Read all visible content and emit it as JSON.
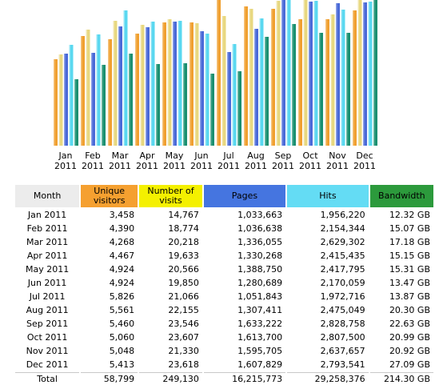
{
  "chart_data": {
    "type": "bar",
    "categories": [
      "Jan 2011",
      "Feb 2011",
      "Mar 2011",
      "Apr 2011",
      "May 2011",
      "Jun 2011",
      "Jul 2011",
      "Aug 2011",
      "Sep 2011",
      "Oct 2011",
      "Nov 2011",
      "Dec 2011"
    ],
    "series": [
      {
        "name": "Unique visitors",
        "color": "#f0a030",
        "values": [
          3458,
          4390,
          4268,
          4467,
          4924,
          4924,
          5826,
          5561,
          5460,
          5060,
          5048,
          5413
        ]
      },
      {
        "name": "Number of visits",
        "color": "#e8d880",
        "values": [
          14767,
          18774,
          20218,
          19633,
          20566,
          19850,
          21066,
          22155,
          23546,
          23607,
          21330,
          23618
        ]
      },
      {
        "name": "Pages",
        "color": "#4a6ad8",
        "values": [
          1033663,
          1036638,
          1336055,
          1330268,
          1388750,
          1280689,
          1051843,
          1307411,
          1633222,
          1613700,
          1595705,
          1607829
        ]
      },
      {
        "name": "Hits",
        "color": "#5ad8f0",
        "values": [
          1956220,
          2154344,
          2629302,
          2415435,
          2417795,
          2170059,
          1972716,
          2475049,
          2828758,
          2807500,
          2637657,
          2793541
        ]
      },
      {
        "name": "Bandwidth",
        "color": "#1a9070",
        "values": [
          12.32,
          15.07,
          17.18,
          15.15,
          15.31,
          13.47,
          13.87,
          20.3,
          22.63,
          20.99,
          20.92,
          27.09
        ]
      }
    ]
  },
  "table": {
    "headers": {
      "month": "Month",
      "unique_visitors": "Unique visitors",
      "visits": "Number of visits",
      "pages": "Pages",
      "hits": "Hits",
      "bandwidth": "Bandwidth"
    },
    "rows": [
      {
        "month": "Jan 2011",
        "unique_visitors": "3,458",
        "visits": "14,767",
        "pages": "1,033,663",
        "hits": "1,956,220",
        "bandwidth": "12.32 GB"
      },
      {
        "month": "Feb 2011",
        "unique_visitors": "4,390",
        "visits": "18,774",
        "pages": "1,036,638",
        "hits": "2,154,344",
        "bandwidth": "15.07 GB"
      },
      {
        "month": "Mar 2011",
        "unique_visitors": "4,268",
        "visits": "20,218",
        "pages": "1,336,055",
        "hits": "2,629,302",
        "bandwidth": "17.18 GB"
      },
      {
        "month": "Apr 2011",
        "unique_visitors": "4,467",
        "visits": "19,633",
        "pages": "1,330,268",
        "hits": "2,415,435",
        "bandwidth": "15.15 GB"
      },
      {
        "month": "May 2011",
        "unique_visitors": "4,924",
        "visits": "20,566",
        "pages": "1,388,750",
        "hits": "2,417,795",
        "bandwidth": "15.31 GB"
      },
      {
        "month": "Jun 2011",
        "unique_visitors": "4,924",
        "visits": "19,850",
        "pages": "1,280,689",
        "hits": "2,170,059",
        "bandwidth": "13.47 GB"
      },
      {
        "month": "Jul 2011",
        "unique_visitors": "5,826",
        "visits": "21,066",
        "pages": "1,051,843",
        "hits": "1,972,716",
        "bandwidth": "13.87 GB"
      },
      {
        "month": "Aug 2011",
        "unique_visitors": "5,561",
        "visits": "22,155",
        "pages": "1,307,411",
        "hits": "2,475,049",
        "bandwidth": "20.30 GB"
      },
      {
        "month": "Sep 2011",
        "unique_visitors": "5,460",
        "visits": "23,546",
        "pages": "1,633,222",
        "hits": "2,828,758",
        "bandwidth": "22.63 GB"
      },
      {
        "month": "Oct 2011",
        "unique_visitors": "5,060",
        "visits": "23,607",
        "pages": "1,613,700",
        "hits": "2,807,500",
        "bandwidth": "20.99 GB"
      },
      {
        "month": "Nov 2011",
        "unique_visitors": "5,048",
        "visits": "21,330",
        "pages": "1,595,705",
        "hits": "2,637,657",
        "bandwidth": "20.92 GB"
      },
      {
        "month": "Dec 2011",
        "unique_visitors": "5,413",
        "visits": "23,618",
        "pages": "1,607,829",
        "hits": "2,793,541",
        "bandwidth": "27.09 GB"
      }
    ],
    "total": {
      "month": "Total",
      "unique_visitors": "58,799",
      "visits": "249,130",
      "pages": "16,215,773",
      "hits": "29,258,376",
      "bandwidth": "214.30 GB"
    }
  }
}
